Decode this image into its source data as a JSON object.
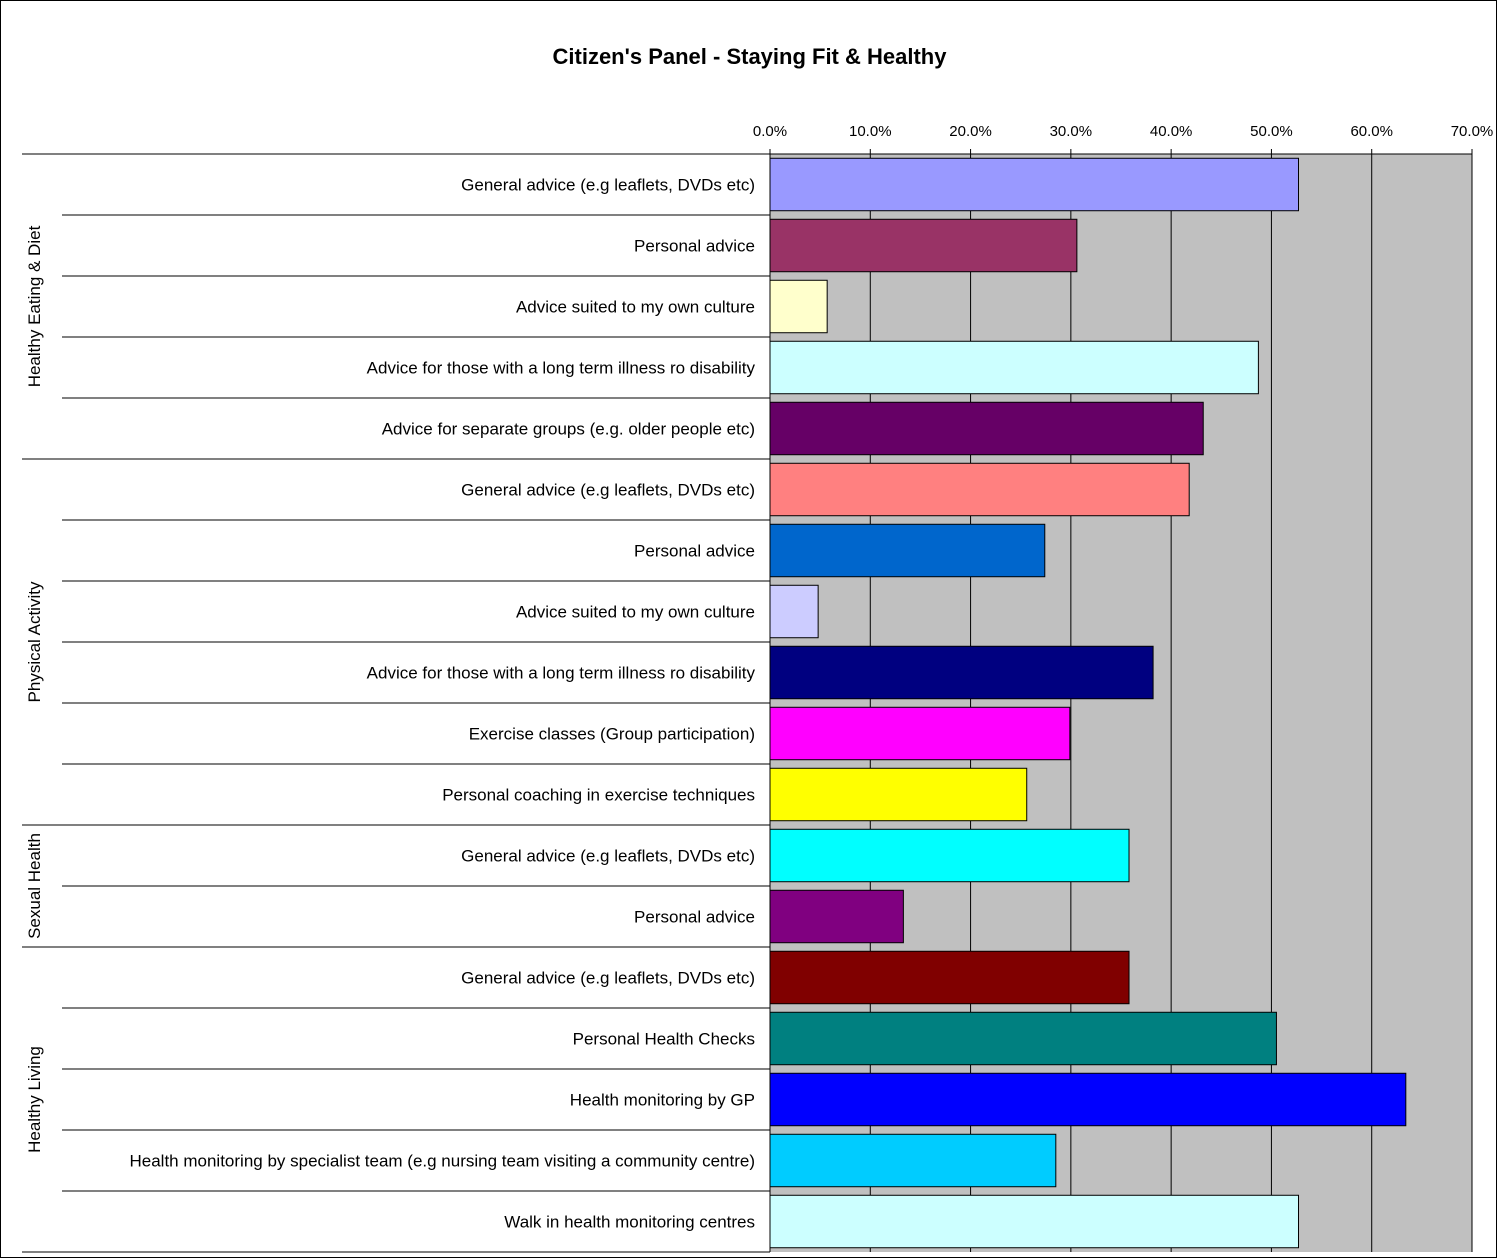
{
  "chart_data": {
    "type": "bar",
    "orientation": "horizontal",
    "title": "Citizen's Panel - Staying Fit & Healthy",
    "xlim": [
      0,
      70
    ],
    "xticks": [
      "0.0%",
      "10.0%",
      "20.0%",
      "30.0%",
      "40.0%",
      "50.0%",
      "60.0%",
      "70.0%"
    ],
    "grid": true,
    "plot_background": "#c0c0c0",
    "groups": [
      {
        "name": "Healthy Eating & Diet",
        "items": [
          {
            "label": "General advice (e.g leaflets, DVDs etc)",
            "value": 52.7,
            "color": "#9999ff"
          },
          {
            "label": "Personal advice",
            "value": 30.6,
            "color": "#993366"
          },
          {
            "label": "Advice suited to my own culture",
            "value": 5.7,
            "color": "#ffffcc"
          },
          {
            "label": "Advice for those with a long term illness ro disability",
            "value": 48.7,
            "color": "#ccffff"
          },
          {
            "label": "Advice for separate groups (e.g. older people etc)",
            "value": 43.2,
            "color": "#660066"
          }
        ]
      },
      {
        "name": "Physical Activity",
        "items": [
          {
            "label": "General advice (e.g leaflets, DVDs etc)",
            "value": 41.8,
            "color": "#ff8080"
          },
          {
            "label": "Personal advice",
            "value": 27.4,
            "color": "#0066cc"
          },
          {
            "label": "Advice suited to my own culture",
            "value": 4.8,
            "color": "#ccccff"
          },
          {
            "label": "Advice for those with a long term illness ro disability",
            "value": 38.2,
            "color": "#000080"
          },
          {
            "label": "Exercise classes (Group participation)",
            "value": 29.9,
            "color": "#ff00ff"
          },
          {
            "label": "Personal coaching in exercise techniques",
            "value": 25.6,
            "color": "#ffff00"
          }
        ]
      },
      {
        "name": "Sexual Health",
        "items": [
          {
            "label": "General advice (e.g leaflets, DVDs etc)",
            "value": 35.8,
            "color": "#00ffff"
          },
          {
            "label": "Personal advice",
            "value": 13.3,
            "color": "#800080"
          }
        ]
      },
      {
        "name": "Healthy Living",
        "items": [
          {
            "label": "General advice (e.g leaflets, DVDs etc)",
            "value": 35.8,
            "color": "#800000"
          },
          {
            "label": "Personal Health Checks",
            "value": 50.5,
            "color": "#008080"
          },
          {
            "label": "Health monitoring by GP",
            "value": 63.4,
            "color": "#0000ff"
          },
          {
            "label": "Health monitoring by specialist team (e.g nursing team visiting a community centre)",
            "value": 28.5,
            "color": "#00ccff"
          },
          {
            "label": "Walk in health monitoring centres",
            "value": 52.7,
            "color": "#ccffff"
          }
        ]
      }
    ]
  }
}
